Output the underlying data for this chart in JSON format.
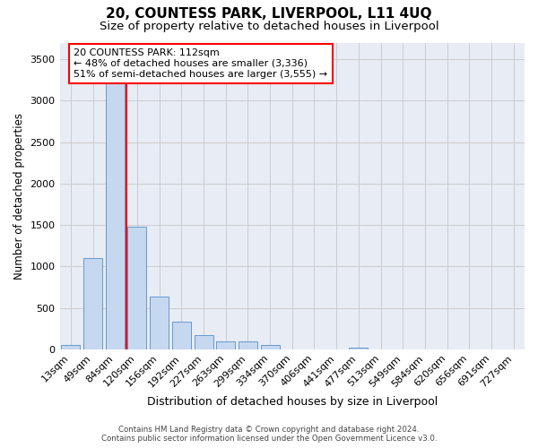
{
  "title": "20, COUNTESS PARK, LIVERPOOL, L11 4UQ",
  "subtitle": "Size of property relative to detached houses in Liverpool",
  "xlabel": "Distribution of detached houses by size in Liverpool",
  "ylabel": "Number of detached properties",
  "categories": [
    "13sqm",
    "49sqm",
    "84sqm",
    "120sqm",
    "156sqm",
    "192sqm",
    "227sqm",
    "263sqm",
    "299sqm",
    "334sqm",
    "370sqm",
    "406sqm",
    "441sqm",
    "477sqm",
    "513sqm",
    "549sqm",
    "584sqm",
    "620sqm",
    "656sqm",
    "691sqm",
    "727sqm"
  ],
  "values": [
    50,
    1100,
    3350,
    1480,
    640,
    330,
    175,
    100,
    95,
    55,
    0,
    0,
    0,
    25,
    0,
    0,
    0,
    0,
    0,
    0,
    0
  ],
  "bar_color": "#c5d8f0",
  "bar_edgecolor": "#6699cc",
  "red_line_index": 2.5,
  "annotation_text": "20 COUNTESS PARK: 112sqm\n← 48% of detached houses are smaller (3,336)\n51% of semi-detached houses are larger (3,555) →",
  "annotation_box_color": "white",
  "annotation_box_edgecolor": "red",
  "red_line_color": "red",
  "ylim": [
    0,
    3700
  ],
  "yticks": [
    0,
    500,
    1000,
    1500,
    2000,
    2500,
    3000,
    3500
  ],
  "grid_color": "#cccccc",
  "bg_color": "#e8ecf5",
  "footer_line1": "Contains HM Land Registry data © Crown copyright and database right 2024.",
  "footer_line2": "Contains public sector information licensed under the Open Government Licence v3.0.",
  "title_fontsize": 11,
  "subtitle_fontsize": 9.5,
  "xlabel_fontsize": 9,
  "ylabel_fontsize": 8.5,
  "tick_fontsize": 8,
  "annot_fontsize": 8
}
